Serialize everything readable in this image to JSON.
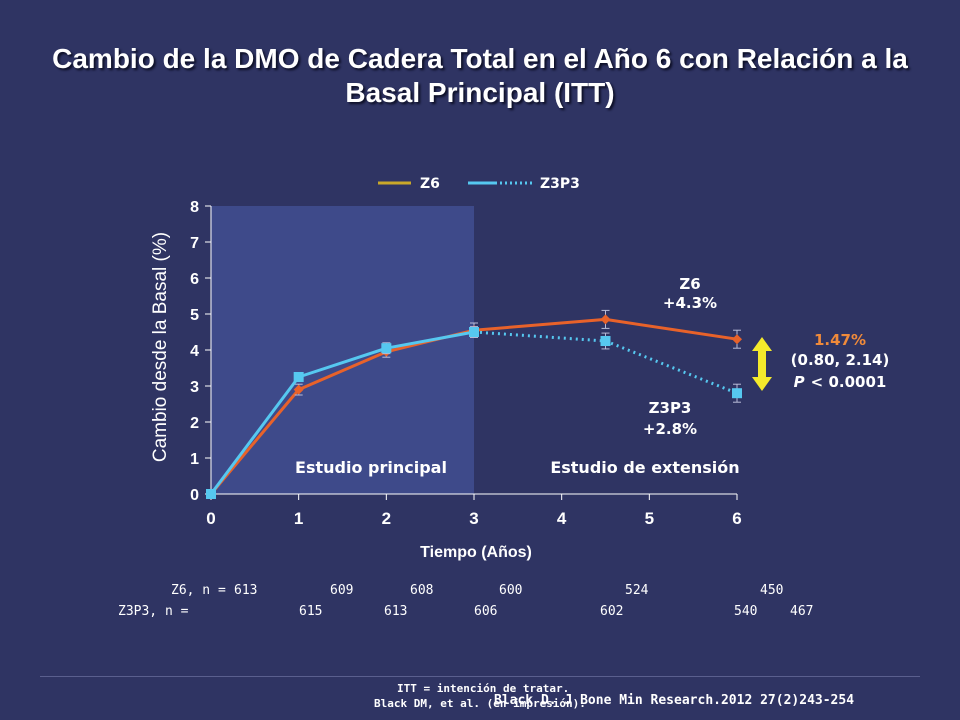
{
  "title": "Cambio de la DMO de Cadera Total en el Año 6 con Relación a la Basal Principal (ITT)",
  "chart_data": {
    "type": "line",
    "xlabel": "Tiempo (Años)",
    "ylabel": "Cambio desde la Basal (%)",
    "xlim": [
      0,
      6
    ],
    "ylim": [
      0,
      8
    ],
    "x_ticks": [
      "0",
      "1",
      "2",
      "3",
      "4",
      "5",
      "6"
    ],
    "y_ticks": [
      "0",
      "1",
      "2",
      "3",
      "4",
      "5",
      "6",
      "7",
      "8"
    ],
    "shaded_region": {
      "x_from": 0,
      "x_to": 3,
      "color": "#3e4a8a"
    },
    "legend": [
      "Z6",
      "Z3P3"
    ],
    "series": [
      {
        "name": "Z6",
        "color": "#e8622a",
        "marker": "diamond",
        "points": [
          {
            "x": 0,
            "y": 0.0,
            "err": 0.0
          },
          {
            "x": 1,
            "y": 2.9,
            "err": 0.15
          },
          {
            "x": 2,
            "y": 3.95,
            "err": 0.15
          },
          {
            "x": 3,
            "y": 4.55,
            "err": 0.2
          },
          {
            "x": 4.5,
            "y": 4.85,
            "err": 0.25
          },
          {
            "x": 6,
            "y": 4.3,
            "err": 0.25
          }
        ]
      },
      {
        "name": "Z3P3",
        "color": "#56c8f0",
        "marker": "square",
        "dotted_from_x": 3,
        "points": [
          {
            "x": 0,
            "y": 0.0,
            "err": 0.0
          },
          {
            "x": 1,
            "y": 3.25,
            "err": 0.12
          },
          {
            "x": 2,
            "y": 4.05,
            "err": 0.15
          },
          {
            "x": 3,
            "y": 4.5,
            "err": 0.15
          },
          {
            "x": 4.5,
            "y": 4.25,
            "err": 0.22
          },
          {
            "x": 6,
            "y": 2.8,
            "err": 0.25
          }
        ]
      }
    ],
    "annotations": {
      "region_main": "Estudio principal",
      "region_ext": "Estudio de extensión",
      "z6_name": "Z6",
      "z6_value": "+4.3%",
      "z3p3_name": "Z3P3",
      "z3p3_value": "+2.8%",
      "diff_value": "1.47%",
      "diff_ci": "(0.80, 2.14)",
      "diff_p_label": "P",
      "diff_p_value": "< 0.0001"
    }
  },
  "n_table": {
    "z6_label": "Z6, n =",
    "z6_values": [
      "613",
      "609",
      "608",
      "600",
      "524",
      "450"
    ],
    "z3p3_label": "Z3P3, n =",
    "z3p3_values": [
      "615",
      "613",
      "606",
      "602",
      "540",
      "467"
    ]
  },
  "footer": {
    "itt": "ITT = intención de tratar.",
    "source": "Black DM, et al. (en impresión).",
    "reference": "Black D. J Bone Min Research.2012 27(2)243-254"
  },
  "colors": {
    "background": "#2f3463",
    "z6": "#e8622a",
    "z3p3": "#56c8f0",
    "diff_arrow": "#f4ea2b",
    "diff_text": "#f08a3a"
  }
}
